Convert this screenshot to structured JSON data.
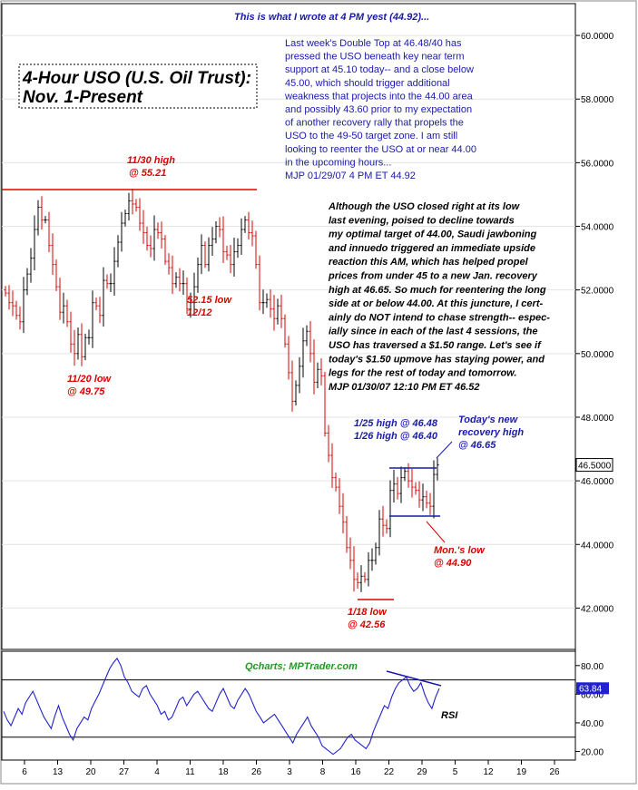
{
  "chart_data": [
    {
      "type": "bar",
      "subtype": "ohlc",
      "title_line1": "4-Hour USO (U.S. Oil Trust):",
      "title_line2": "Nov. 1-Present",
      "ylim": [
        40.7,
        61.0
      ],
      "y_ticks": [
        "42.0000",
        "44.0000",
        "46.0000",
        "48.0000",
        "50.0000",
        "52.0000",
        "54.0000",
        "56.0000",
        "58.0000",
        "60.0000"
      ],
      "y_tick_values": [
        42,
        44,
        46,
        48,
        50,
        52,
        54,
        56,
        58,
        60
      ],
      "last_price_label": "46.5000",
      "last_price": 46.5,
      "x_ticks": [
        "6",
        "13",
        "20",
        "27",
        "4",
        "11",
        "18",
        "26",
        "3",
        "8",
        "16",
        "22",
        "29",
        "5",
        "12",
        "19",
        "26"
      ],
      "bull_color": "#000000",
      "bear_color": "#dd0000",
      "closes": [
        51.9,
        51.6,
        51.5,
        51.2,
        51.0,
        52.0,
        52.5,
        53.0,
        53.9,
        54.6,
        54.2,
        54.2,
        53.4,
        52.8,
        52.1,
        51.3,
        51.5,
        51.0,
        50.3,
        50.0,
        50.6,
        49.9,
        50.5,
        50.5,
        51.6,
        51.5,
        51.2,
        52.3,
        52.2,
        52.2,
        52.9,
        53.5,
        54.1,
        54.4,
        54.8,
        54.7,
        54.6,
        54.1,
        53.8,
        53.4,
        53.3,
        53.9,
        53.8,
        53.6,
        52.9,
        52.7,
        52.2,
        52.4,
        52.2,
        52.2,
        51.4,
        51.6,
        52.1,
        52.8,
        53.4,
        52.8,
        53.4,
        53.6,
        54.0,
        53.9,
        53.2,
        53.1,
        52.8,
        53.2,
        53.4,
        53.9,
        54.2,
        53.8,
        53.7,
        52.8,
        51.6,
        51.6,
        51.7,
        51.4,
        51.1,
        51.5,
        51.1,
        50.3,
        49.4,
        48.5,
        49.0,
        49.6,
        50.4,
        50.7,
        50.0,
        49.1,
        49.5,
        49.3,
        47.5,
        46.8,
        46.1,
        45.8,
        45.2,
        44.7,
        43.9,
        43.5,
        42.9,
        42.8,
        43.0,
        42.9,
        43.5,
        43.5,
        43.9,
        44.8,
        44.6,
        44.5,
        45.7,
        45.9,
        45.6,
        46.1,
        46.3,
        46.0,
        45.8,
        45.7,
        45.4,
        45.5,
        45.3,
        45.2,
        46.2,
        46.5
      ],
      "annotations": [
        {
          "text": "11/30 high",
          "color": "#dd0000"
        },
        {
          "text": "@ 55.21",
          "color": "#dd0000"
        },
        {
          "text": "11/20 low",
          "color": "#dd0000"
        },
        {
          "text": "@ 49.75",
          "color": "#dd0000"
        },
        {
          "text": "52.15 low",
          "color": "#dd0000"
        },
        {
          "text": "12/12",
          "color": "#dd0000"
        },
        {
          "text": "1/18 low",
          "color": "#dd0000"
        },
        {
          "text": "@ 42.56",
          "color": "#dd0000"
        },
        {
          "text": "Mon.'s low",
          "color": "#dd0000"
        },
        {
          "text": "@ 44.90",
          "color": "#dd0000"
        },
        {
          "text": "1/25 high @ 46.48",
          "color": "#1a1aaa"
        },
        {
          "text": "1/26 high @ 46.40",
          "color": "#1a1aaa"
        },
        {
          "text": "Today's new",
          "color": "#1a1aaa"
        },
        {
          "text": "recovery high",
          "color": "#1a1aaa"
        },
        {
          "text": "@ 46.65",
          "color": "#1a1aaa"
        }
      ],
      "note1_header": "This is what I wrote at 4 PM yest (44.92)...",
      "note1_lines": [
        "Last week's Double Top at 46.48/40 has",
        "pressed the USO beneath key near term",
        "support at 45.10 today-- and a close below",
        "45.00, which should trigger additional",
        "weakness that projects into the 44.00 area",
        "and possibly 43.60 prior to my expectation",
        "of another recovery rally that propels the",
        "USO to the 49-50 target zone. I am still",
        "looking to reenter the USO at or near 44.00",
        "in the upcoming hours...",
        "MJP  01/29/07 4 PM ET  44.92"
      ],
      "note2_lines": [
        "Although the USO closed right at its low",
        "last evening, poised to decline towards",
        "my optimal target of 44.00, Saudi jawboning",
        "and innuedo triggered an immediate upside",
        "reaction this AM, which has helped propel",
        "prices from under 45 to a new Jan. recovery",
        "high at 46.65.  So much for reentering the long",
        "side at or below 44.00. At this juncture, I cert-",
        "ainly do NOT intend to chase strength-- espec-",
        "ially since in each of the last 4 sessions, the",
        "USO has traversed a $1.50 range. Let's see if",
        "today's $1.50 upmove has staying power, and",
        "legs for the rest of today and tomorrow.",
        "MJP  01/30/07 12:10 PM ET  46.52"
      ]
    },
    {
      "type": "line",
      "series_name": "RSI",
      "ylim": [
        14,
        90
      ],
      "y_ticks": [
        "20.00",
        "40.00",
        "60.00",
        "80.00"
      ],
      "y_tick_values": [
        20,
        40,
        60,
        80
      ],
      "last_value_label": "63.84",
      "last_value": 63.84,
      "levels": [
        70,
        30
      ],
      "watermark": "Qcharts; MPTrader.com",
      "line_color": "#2222cc",
      "values": [
        48,
        42,
        38,
        44,
        50,
        46,
        54,
        58,
        62,
        56,
        50,
        44,
        40,
        36,
        45,
        52,
        44,
        38,
        32,
        28,
        36,
        40,
        44,
        42,
        50,
        55,
        60,
        66,
        72,
        78,
        82,
        85,
        80,
        72,
        68,
        62,
        60,
        58,
        64,
        66,
        60,
        56,
        52,
        46,
        48,
        42,
        44,
        50,
        56,
        58,
        52,
        56,
        60,
        62,
        58,
        54,
        50,
        48,
        54,
        60,
        64,
        58,
        52,
        50,
        56,
        60,
        64,
        60,
        54,
        48,
        44,
        40,
        42,
        44,
        46,
        42,
        38,
        34,
        30,
        26,
        32,
        36,
        40,
        44,
        38,
        34,
        30,
        24,
        22,
        20,
        18,
        20,
        22,
        26,
        30,
        32,
        28,
        26,
        24,
        22,
        26,
        34,
        40,
        46,
        52,
        50,
        58,
        64,
        68,
        70,
        72,
        66,
        62,
        64,
        68,
        60,
        54,
        50,
        58,
        64
      ]
    }
  ]
}
